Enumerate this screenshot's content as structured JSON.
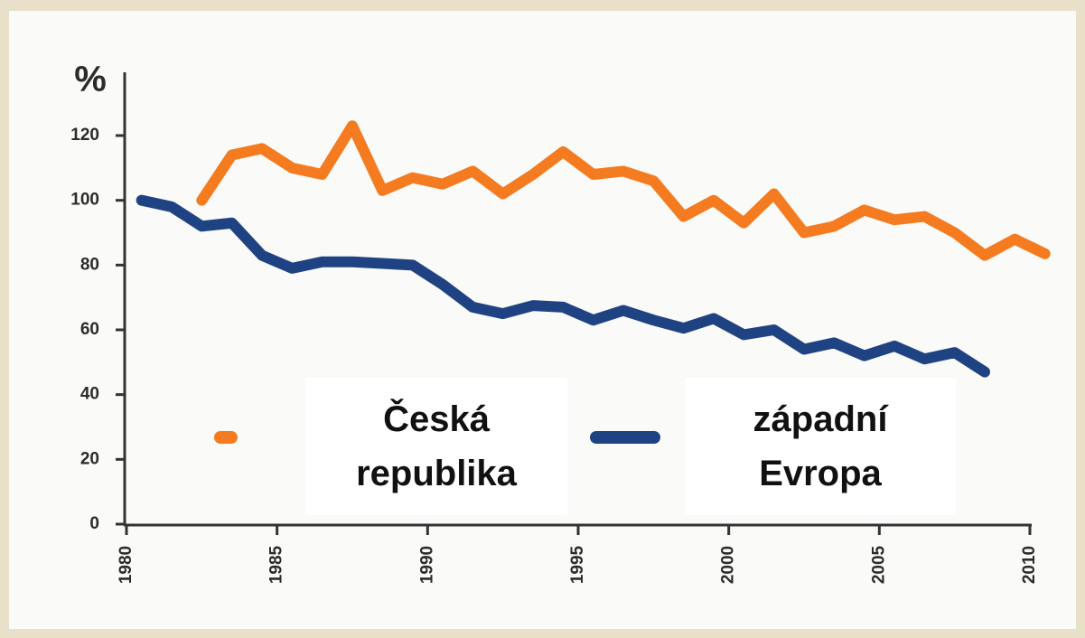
{
  "chart_data": {
    "type": "line",
    "y_label": "%",
    "x": [
      1980.5,
      1981.5,
      1982.5,
      1983.5,
      1984.5,
      1985.5,
      1986.5,
      1987.5,
      1988.5,
      1989.5,
      1990.5,
      1991.5,
      1992.5,
      1993.5,
      1994.5,
      1995.5,
      1996.5,
      1997.5,
      1998.5,
      1999.5,
      2000.5,
      2001.5,
      2002.5,
      2003.5,
      2004.5,
      2005.5,
      2006.5,
      2007.5,
      2008.5,
      2009.5,
      2010.5
    ],
    "series": [
      {
        "name": "Česká republika",
        "color": "#f47b20",
        "values": [
          null,
          null,
          100,
          114,
          116,
          110,
          108,
          123,
          103,
          107,
          105,
          109,
          102,
          108,
          115,
          108,
          109,
          106,
          95,
          100,
          93,
          102,
          90,
          92,
          97,
          94,
          95,
          90,
          83,
          88,
          83.5
        ]
      },
      {
        "name": "západní Evropa",
        "color": "#1f4382",
        "values": [
          100,
          98,
          92,
          93,
          83,
          79,
          81,
          81,
          80.5,
          80,
          74,
          67,
          65,
          67.5,
          67,
          63,
          66,
          63,
          60.5,
          63.5,
          58.5,
          60,
          54,
          56,
          52,
          55,
          51,
          53,
          47,
          null,
          null
        ]
      }
    ],
    "xlim": [
      1980,
      2010
    ],
    "xticks": [
      1980,
      1985,
      1990,
      1995,
      2000,
      2005,
      2010
    ],
    "ylim": [
      0,
      120
    ],
    "yticks": [
      0,
      20,
      40,
      60,
      80,
      100,
      120
    ]
  }
}
